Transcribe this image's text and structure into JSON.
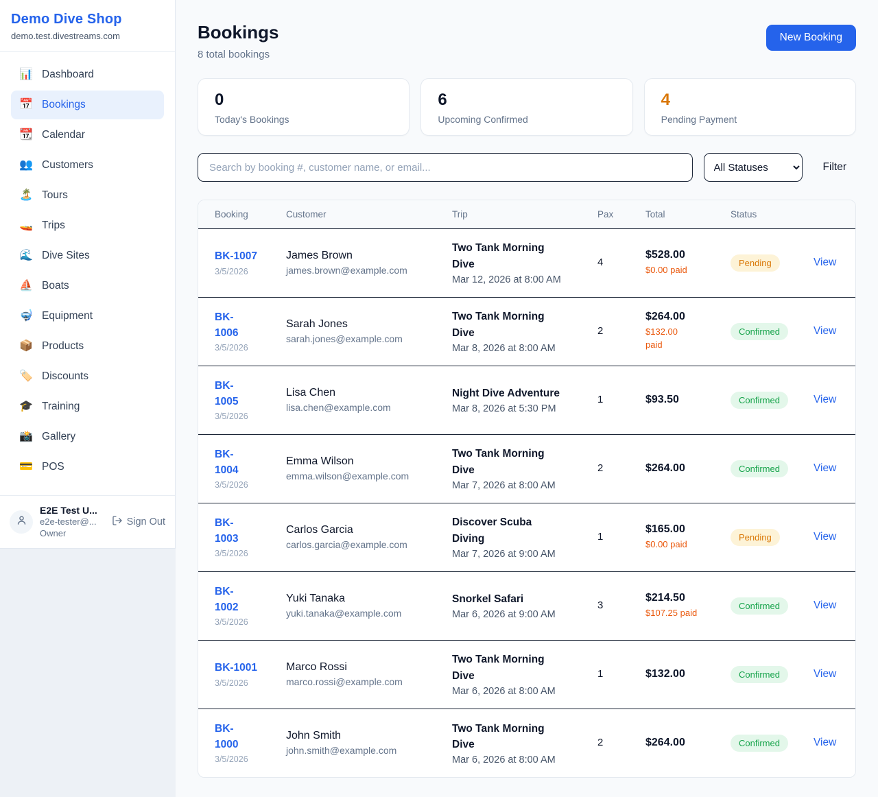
{
  "sidebar": {
    "brand": {
      "name": "Demo Dive Shop",
      "domain": "demo.test.divestreams.com"
    },
    "nav": [
      {
        "slug": "dashboard",
        "label": "Dashboard",
        "icon": "📊",
        "icon_name": "bar-chart-icon",
        "active": false
      },
      {
        "slug": "bookings",
        "label": "Bookings",
        "icon": "📅",
        "icon_name": "calendar-icon",
        "active": true
      },
      {
        "slug": "calendar",
        "label": "Calendar",
        "icon": "📆",
        "icon_name": "tear-off-calendar-icon",
        "active": false
      },
      {
        "slug": "customers",
        "label": "Customers",
        "icon": "👥",
        "icon_name": "people-icon",
        "active": false
      },
      {
        "slug": "tours",
        "label": "Tours",
        "icon": "🏝️",
        "icon_name": "island-icon",
        "active": false
      },
      {
        "slug": "trips",
        "label": "Trips",
        "icon": "🚤",
        "icon_name": "speedboat-icon",
        "active": false
      },
      {
        "slug": "dive-sites",
        "label": "Dive Sites",
        "icon": "🌊",
        "icon_name": "wave-icon",
        "active": false
      },
      {
        "slug": "boats",
        "label": "Boats",
        "icon": "⛵",
        "icon_name": "sailboat-icon",
        "active": false
      },
      {
        "slug": "equipment",
        "label": "Equipment",
        "icon": "🤿",
        "icon_name": "diving-mask-icon",
        "active": false
      },
      {
        "slug": "products",
        "label": "Products",
        "icon": "📦",
        "icon_name": "package-icon",
        "active": false
      },
      {
        "slug": "discounts",
        "label": "Discounts",
        "icon": "🏷️",
        "icon_name": "label-icon",
        "active": false
      },
      {
        "slug": "training",
        "label": "Training",
        "icon": "🎓",
        "icon_name": "graduation-cap-icon",
        "active": false
      },
      {
        "slug": "gallery",
        "label": "Gallery",
        "icon": "📸",
        "icon_name": "camera-flash-icon",
        "active": false
      },
      {
        "slug": "pos",
        "label": "POS",
        "icon": "💳",
        "icon_name": "credit-card-icon",
        "active": false
      }
    ],
    "user": {
      "name": "E2E Test U...",
      "email": "e2e-tester@...",
      "role": "Owner",
      "sign_out_label": "Sign Out"
    }
  },
  "header": {
    "title": "Bookings",
    "subtitle": "8 total bookings",
    "new_booking_label": "New Booking"
  },
  "stats": [
    {
      "value": "0",
      "label": "Today's Bookings",
      "color": "#0f172a"
    },
    {
      "value": "6",
      "label": "Upcoming Confirmed",
      "color": "#0f172a"
    },
    {
      "value": "4",
      "label": "Pending Payment",
      "color": "#d97706"
    }
  ],
  "filters": {
    "search_placeholder": "Search by booking #, customer name, or email...",
    "status_selected": "All Statuses",
    "filter_label": "Filter"
  },
  "table": {
    "columns": [
      "Booking",
      "Customer",
      "Trip",
      "Pax",
      "Total",
      "Status"
    ],
    "view_label": "View",
    "rows": [
      {
        "booking": "BK-1007",
        "booking_wrap": false,
        "date": "3/5/2026",
        "customer": "James Brown",
        "email": "james.brown@example.com",
        "trip": "Two Tank Morning Dive",
        "trip_datetime": "Mar 12, 2026 at 8:00 AM",
        "pax": "4",
        "total": "$528.00",
        "paid": "$0.00 paid",
        "paid_wrap": false,
        "status": "Pending"
      },
      {
        "booking": "BK-1006",
        "booking_wrap": true,
        "date": "3/5/2026",
        "customer": "Sarah Jones",
        "email": "sarah.jones@example.com",
        "trip": "Two Tank Morning Dive",
        "trip_datetime": "Mar 8, 2026 at 8:00 AM",
        "pax": "2",
        "total": "$264.00",
        "paid": "$132.00 paid",
        "paid_wrap": true,
        "status": "Confirmed"
      },
      {
        "booking": "BK-1005",
        "booking_wrap": true,
        "date": "3/5/2026",
        "customer": "Lisa Chen",
        "email": "lisa.chen@example.com",
        "trip": "Night Dive Adventure",
        "trip_datetime": "Mar 8, 2026 at 5:30 PM",
        "pax": "1",
        "total": "$93.50",
        "paid": null,
        "paid_wrap": false,
        "status": "Confirmed"
      },
      {
        "booking": "BK-1004",
        "booking_wrap": true,
        "date": "3/5/2026",
        "customer": "Emma Wilson",
        "email": "emma.wilson@example.com",
        "trip": "Two Tank Morning Dive",
        "trip_datetime": "Mar 7, 2026 at 8:00 AM",
        "pax": "2",
        "total": "$264.00",
        "paid": null,
        "paid_wrap": false,
        "status": "Confirmed"
      },
      {
        "booking": "BK-1003",
        "booking_wrap": true,
        "date": "3/5/2026",
        "customer": "Carlos Garcia",
        "email": "carlos.garcia@example.com",
        "trip": "Discover Scuba Diving",
        "trip_datetime": "Mar 7, 2026 at 9:00 AM",
        "pax": "1",
        "total": "$165.00",
        "paid": "$0.00 paid",
        "paid_wrap": false,
        "status": "Pending"
      },
      {
        "booking": "BK-1002",
        "booking_wrap": true,
        "date": "3/5/2026",
        "customer": "Yuki Tanaka",
        "email": "yuki.tanaka@example.com",
        "trip": "Snorkel Safari",
        "trip_datetime": "Mar 6, 2026 at 9:00 AM",
        "pax": "3",
        "total": "$214.50",
        "paid": "$107.25 paid",
        "paid_wrap": false,
        "status": "Confirmed"
      },
      {
        "booking": "BK-1001",
        "booking_wrap": false,
        "date": "3/5/2026",
        "customer": "Marco Rossi",
        "email": "marco.rossi@example.com",
        "trip": "Two Tank Morning Dive",
        "trip_datetime": "Mar 6, 2026 at 8:00 AM",
        "pax": "1",
        "total": "$132.00",
        "paid": null,
        "paid_wrap": false,
        "status": "Confirmed"
      },
      {
        "booking": "BK-1000",
        "booking_wrap": true,
        "date": "3/5/2026",
        "customer": "John Smith",
        "email": "john.smith@example.com",
        "trip": "Two Tank Morning Dive",
        "trip_datetime": "Mar 6, 2026 at 8:00 AM",
        "pax": "2",
        "total": "$264.00",
        "paid": null,
        "paid_wrap": false,
        "status": "Confirmed"
      }
    ]
  },
  "colors": {
    "accent": "#2563eb",
    "paid_amount": "#ea580c",
    "stat_accent": "#d97706",
    "status": {
      "Pending": {
        "text": "#d97706",
        "bg": "#fdf3d7"
      },
      "Confirmed": {
        "text": "#16a34a",
        "bg": "#e3f7ea"
      }
    }
  }
}
